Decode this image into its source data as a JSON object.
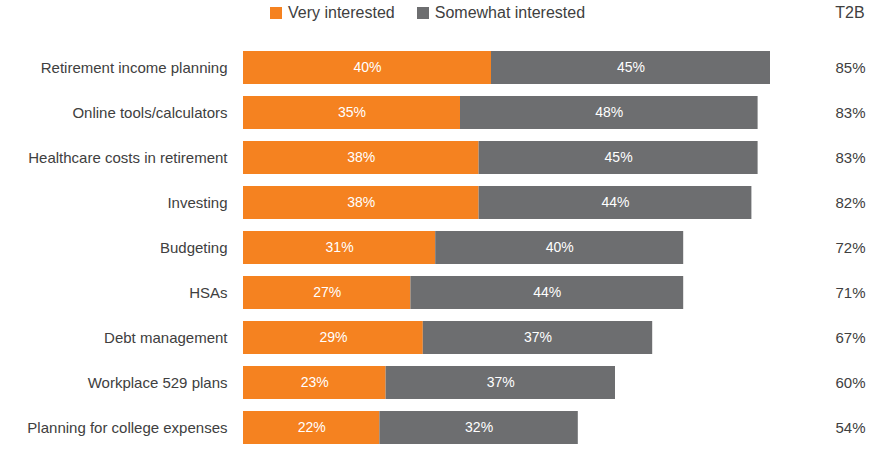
{
  "chart_data": {
    "type": "bar",
    "orientation": "horizontal",
    "stacked": true,
    "data_labels": true,
    "tick_labels": "y",
    "legend": "top",
    "categories": [
      "Retirement income planning",
      "Online tools/calculators",
      "Healthcare costs in retirement",
      "Investing",
      "Budgeting",
      "HSAs",
      "Debt management",
      "Workplace 529 plans",
      "Planning for college expenses"
    ],
    "series": [
      {
        "name": "Very interested",
        "color": "#f58220",
        "values": [
          40,
          35,
          38,
          38,
          31,
          27,
          29,
          23,
          22
        ],
        "value_labels": [
          "40%",
          "35%",
          "38%",
          "38%",
          "31%",
          "27%",
          "29%",
          "23%",
          "22%"
        ]
      },
      {
        "name": "Somewhat interested",
        "color": "#6d6e70",
        "values": [
          45,
          48,
          45,
          44,
          40,
          44,
          37,
          37,
          32
        ],
        "value_labels": [
          "45%",
          "48%",
          "45%",
          "44%",
          "40%",
          "44%",
          "37%",
          "37%",
          "32%"
        ]
      }
    ],
    "totals": {
      "title": "T2B",
      "values": [
        85,
        83,
        83,
        82,
        72,
        71,
        67,
        60,
        54
      ],
      "value_labels": [
        "85%",
        "83%",
        "83%",
        "82%",
        "72%",
        "71%",
        "67%",
        "60%",
        "54%"
      ]
    },
    "xlim": [
      0,
      85
    ],
    "xticks": []
  }
}
